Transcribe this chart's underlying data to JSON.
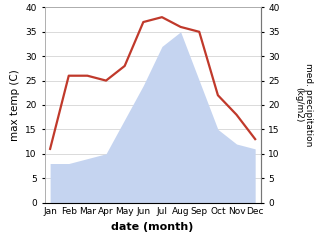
{
  "months": [
    "Jan",
    "Feb",
    "Mar",
    "Apr",
    "May",
    "Jun",
    "Jul",
    "Aug",
    "Sep",
    "Oct",
    "Nov",
    "Dec"
  ],
  "temperature": [
    11,
    26,
    26,
    25,
    28,
    37,
    38,
    36,
    35,
    22,
    18,
    13
  ],
  "precipitation": [
    8,
    8,
    9,
    10,
    17,
    24,
    32,
    35,
    25,
    15,
    12,
    11
  ],
  "temp_color": "#c0392b",
  "precip_fill_color": "#c5d4f0",
  "ylim": [
    0,
    40
  ],
  "xlabel": "date (month)",
  "ylabel_left": "max temp (C)",
  "ylabel_right": "med. precipitation\n(kg/m2)",
  "tick_fontsize": 6.5,
  "label_fontsize": 7.5,
  "xlabel_fontsize": 8
}
